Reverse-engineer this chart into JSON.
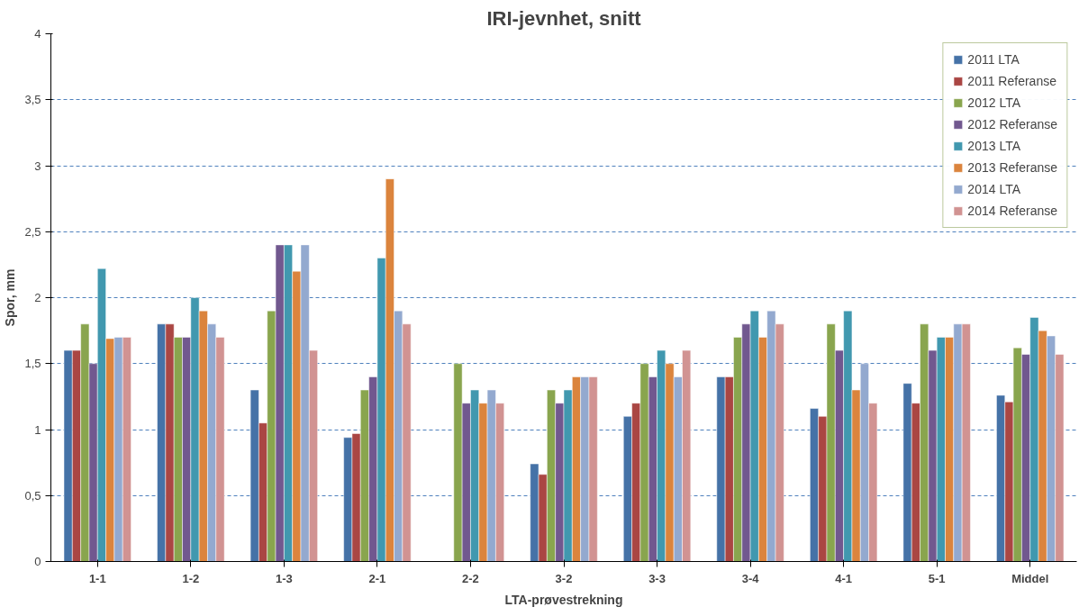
{
  "chart_data": {
    "type": "bar",
    "title": "IRI-jevnhet, snitt",
    "xlabel": "LTA-prøvestrekning",
    "ylabel": "Spor, mm",
    "categories": [
      "1-1",
      "1-2",
      "1-3",
      "2-1",
      "2-2",
      "3-2",
      "3-3",
      "3-4",
      "4-1",
      "5-1",
      "Middel"
    ],
    "series": [
      {
        "name": "2011 LTA",
        "color": "#4572a7",
        "values": [
          1.6,
          1.8,
          1.3,
          0.94,
          null,
          0.74,
          1.1,
          1.4,
          1.16,
          1.35,
          1.26
        ]
      },
      {
        "name": "2011 Referanse",
        "color": "#aa4643",
        "values": [
          1.6,
          1.8,
          1.05,
          0.97,
          null,
          0.66,
          1.2,
          1.4,
          1.1,
          1.2,
          1.21
        ]
      },
      {
        "name": "2012 LTA",
        "color": "#89a54e",
        "values": [
          1.8,
          1.7,
          1.9,
          1.3,
          1.5,
          1.3,
          1.5,
          1.7,
          1.8,
          1.8,
          1.62
        ]
      },
      {
        "name": "2012 Referanse",
        "color": "#71588f",
        "values": [
          1.5,
          1.7,
          2.4,
          1.4,
          1.2,
          1.2,
          1.4,
          1.8,
          1.6,
          1.6,
          1.57
        ]
      },
      {
        "name": "2013 LTA",
        "color": "#4198af",
        "values": [
          2.22,
          2.0,
          2.4,
          2.3,
          1.3,
          1.3,
          1.6,
          1.9,
          1.9,
          1.7,
          1.85
        ]
      },
      {
        "name": "2013 Referanse",
        "color": "#db843d",
        "values": [
          1.69,
          1.9,
          2.2,
          2.9,
          1.2,
          1.4,
          1.5,
          1.7,
          1.3,
          1.7,
          1.75
        ]
      },
      {
        "name": "2014 LTA",
        "color": "#93a9cf",
        "values": [
          1.7,
          1.8,
          2.4,
          1.9,
          1.3,
          1.4,
          1.4,
          1.9,
          1.5,
          1.8,
          1.71
        ]
      },
      {
        "name": "2014 Referanse",
        "color": "#d19392",
        "values": [
          1.7,
          1.7,
          1.6,
          1.8,
          1.2,
          1.4,
          1.6,
          1.8,
          1.2,
          1.8,
          1.57
        ]
      }
    ],
    "ylim": [
      0,
      4
    ],
    "yticks": [
      0,
      {
        "value": 0.5,
        "label": "0,5"
      },
      1,
      {
        "value": 1.5,
        "label": "1,5"
      },
      2,
      {
        "value": 2.5,
        "label": "2,5"
      },
      3,
      {
        "value": 3.5,
        "label": "3,5"
      },
      4
    ],
    "grid": "y",
    "legend": "top right"
  }
}
